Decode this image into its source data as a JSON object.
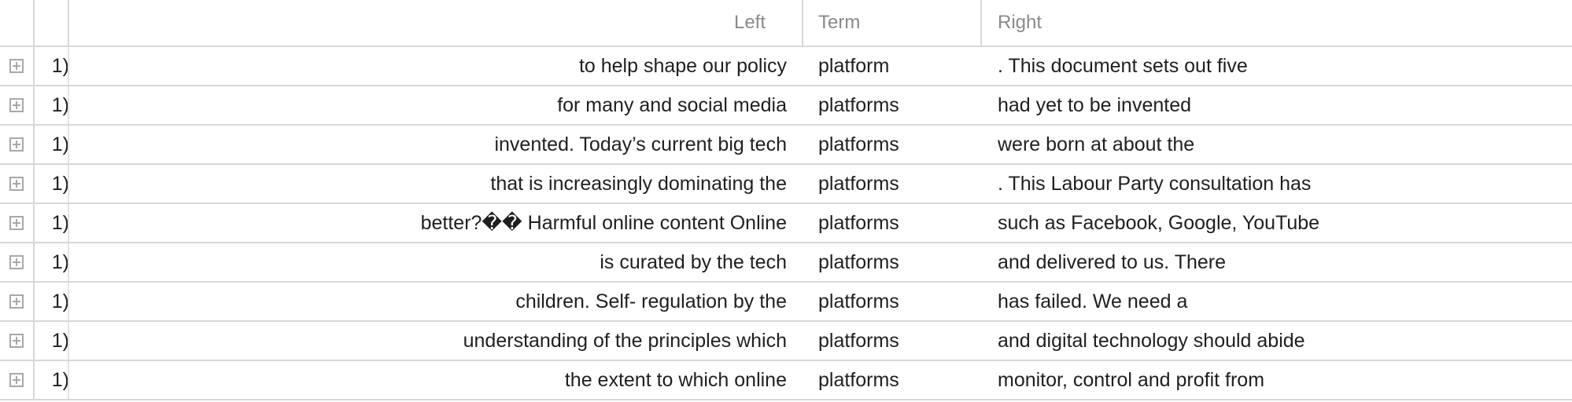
{
  "columns": {
    "left": "Left",
    "term": "Term",
    "right": "Right"
  },
  "rows": [
    {
      "num": "1)",
      "left": "to help shape our policy",
      "term": "platform",
      "right": ". This document sets out five"
    },
    {
      "num": "1)",
      "left": "for many and social media",
      "term": "platforms",
      "right": "had yet to be invented"
    },
    {
      "num": "1)",
      "left": "invented. Today’s current big tech",
      "term": "platforms",
      "right": "were born at about the"
    },
    {
      "num": "1)",
      "left": "that is increasingly dominating the",
      "term": "platforms",
      "right": ". This Labour Party consultation has"
    },
    {
      "num": "1)",
      "left": "better?�� Harmful online content Online",
      "term": "platforms",
      "right": "such as Facebook, Google, YouTube"
    },
    {
      "num": "1)",
      "left": "is curated by the tech",
      "term": "platforms",
      "right": "and delivered to us. There"
    },
    {
      "num": "1)",
      "left": "children. Self- regulation by the",
      "term": "platforms",
      "right": "has failed. We need a"
    },
    {
      "num": "1)",
      "left": "understanding of the principles which",
      "term": "platforms",
      "right": "and digital technology should abide"
    },
    {
      "num": "1)",
      "left": "the extent to which online",
      "term": "platforms",
      "right": "monitor, control and profit from"
    }
  ]
}
